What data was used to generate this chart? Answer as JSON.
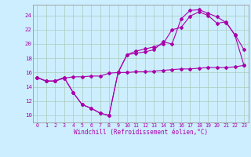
{
  "background_color": "#cceeff",
  "grid_color": "#aaccbb",
  "line_color": "#aa00aa",
  "xlabel": "Windchill (Refroidissement éolien,°C)",
  "xlim": [
    -0.5,
    23.5
  ],
  "ylim": [
    9.0,
    25.5
  ],
  "yticks": [
    10,
    12,
    14,
    16,
    18,
    20,
    22,
    24
  ],
  "xticks": [
    0,
    1,
    2,
    3,
    4,
    5,
    6,
    7,
    8,
    9,
    10,
    11,
    12,
    13,
    14,
    15,
    16,
    17,
    18,
    19,
    20,
    21,
    22,
    23
  ],
  "series": [
    {
      "x": [
        0,
        1,
        2,
        3,
        4,
        5,
        6,
        7,
        8,
        9,
        10,
        11,
        12,
        13,
        14,
        15,
        16,
        17,
        18,
        19,
        20,
        21,
        22,
        23
      ],
      "y": [
        15.3,
        14.8,
        14.8,
        15.2,
        15.4,
        15.4,
        15.5,
        15.5,
        15.9,
        16.0,
        16.0,
        16.1,
        16.1,
        16.2,
        16.3,
        16.4,
        16.5,
        16.5,
        16.6,
        16.7,
        16.7,
        16.7,
        16.8,
        17.0
      ]
    },
    {
      "x": [
        0,
        1,
        2,
        3,
        4,
        5,
        6,
        7,
        8,
        9,
        10,
        11,
        12,
        13,
        14,
        15,
        16,
        17,
        18,
        19,
        20,
        21,
        22,
        23
      ],
      "y": [
        15.3,
        14.8,
        14.8,
        15.3,
        13.2,
        11.5,
        11.0,
        10.3,
        10.0,
        16.0,
        18.5,
        18.7,
        18.9,
        19.2,
        20.3,
        20.0,
        23.5,
        24.7,
        24.8,
        24.3,
        23.8,
        23.0,
        21.3,
        19.2
      ]
    },
    {
      "x": [
        0,
        1,
        2,
        3,
        4,
        5,
        6,
        7,
        8,
        9,
        10,
        11,
        12,
        13,
        14,
        15,
        16,
        17,
        18,
        19,
        20,
        21,
        22,
        23
      ],
      "y": [
        15.3,
        14.8,
        14.8,
        15.3,
        13.2,
        11.5,
        11.0,
        10.3,
        10.0,
        16.0,
        18.5,
        19.0,
        19.3,
        19.6,
        20.0,
        22.0,
        22.3,
        23.9,
        24.5,
        24.0,
        22.9,
        23.1,
        21.2,
        17.0
      ]
    }
  ],
  "xlabel_fontsize": 5.5,
  "tick_fontsize": 4.8,
  "marker_size": 2.0,
  "line_width": 0.8
}
